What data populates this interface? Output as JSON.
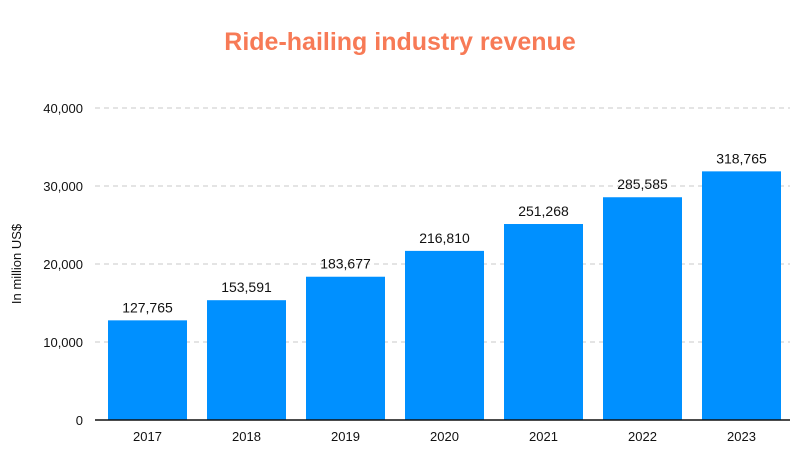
{
  "chart_data": {
    "type": "bar",
    "title": "Ride-hailing industry revenue",
    "ylabel": "In million US$",
    "xlabel": "",
    "categories": [
      "2017",
      "2018",
      "2019",
      "2020",
      "2021",
      "2022",
      "2023"
    ],
    "values": [
      127765,
      153591,
      183677,
      216810,
      251268,
      285585,
      318765
    ],
    "data_labels": [
      "127,765",
      "153,591",
      "183,677",
      "216,810",
      "251,268",
      "285,585",
      "318,765"
    ],
    "yticks": [
      0,
      10000,
      20000,
      30000,
      40000
    ],
    "ytick_labels": [
      "0",
      "10,000",
      "20,000",
      "30,000",
      "40,000"
    ],
    "ylim": [
      0,
      40000
    ],
    "grid": true,
    "bar_color": "#0090ff",
    "title_color": "#f77a56"
  }
}
